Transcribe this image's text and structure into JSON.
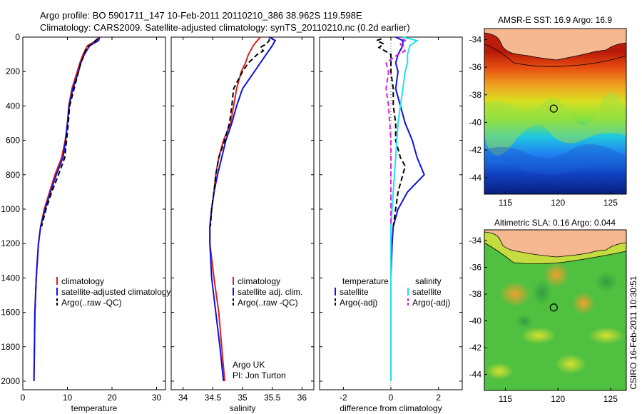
{
  "header": {
    "line1": "Argo profile: BO 5901711_147 10-Feb-2011 20110210_386 38.962S 119.598E",
    "line2": "Climatology: CARS2009. Satellite-adjusted climatology: synTS_20110210.nc (0.2d earlier)"
  },
  "side_text": "CSIRO 16-Feb-2011 10:30:51",
  "colors": {
    "red": "#dd2020",
    "blue": "#1010dd",
    "black": "#000000",
    "cyan": "#20e0f0",
    "magenta": "#e020e0",
    "land": "#f5b890"
  },
  "chart_data": [
    {
      "type": "line",
      "xlabel": "temperature",
      "xlim": [
        0,
        32
      ],
      "ylim": [
        2050,
        0
      ],
      "xticks": [
        "0",
        "10",
        "20",
        "30"
      ],
      "yticks": [
        "0",
        "200",
        "400",
        "600",
        "800",
        "1000",
        "1200",
        "1400",
        "1600",
        "1800",
        "2000"
      ],
      "legend": [
        "climatology",
        "satellite-adjusted climatology",
        "Argo(..raw -QC)"
      ],
      "series": [
        {
          "name": "climatology",
          "color": "#dd2020",
          "dash": false,
          "depth": [
            0,
            20,
            50,
            100,
            150,
            200,
            300,
            400,
            500,
            600,
            700,
            800,
            900,
            1000,
            1100,
            1200,
            1400,
            1600,
            1800,
            2000
          ],
          "values": [
            17.0,
            16.5,
            14.5,
            13.5,
            12.8,
            12.2,
            11.0,
            10.3,
            10.0,
            9.5,
            8.7,
            7.2,
            6.0,
            4.8,
            4.0,
            3.5,
            3.0,
            2.7,
            2.6,
            2.5
          ]
        },
        {
          "name": "satellite-adjusted climatology",
          "color": "#1010dd",
          "dash": false,
          "depth": [
            0,
            20,
            50,
            100,
            150,
            200,
            300,
            400,
            500,
            600,
            700,
            800,
            900,
            1000,
            1100,
            1200,
            1400,
            1600,
            1800,
            2000
          ],
          "values": [
            17.2,
            17.0,
            15.0,
            13.8,
            13.0,
            12.5,
            11.2,
            10.4,
            10.0,
            9.6,
            9.0,
            7.5,
            6.2,
            5.0,
            4.0,
            3.5,
            3.0,
            2.7,
            2.6,
            2.5
          ]
        },
        {
          "name": "Argo(..raw -QC)",
          "color": "#000000",
          "dash": true,
          "depth": [
            10,
            20,
            40,
            60,
            100,
            150,
            200,
            300,
            400,
            500,
            600,
            700,
            800,
            900,
            1000,
            1100
          ],
          "values": [
            16.8,
            16.3,
            15.5,
            14.3,
            13.8,
            13.0,
            12.5,
            11.5,
            10.5,
            10.2,
            9.8,
            9.4,
            8.0,
            6.5,
            5.2,
            4.2
          ]
        }
      ]
    },
    {
      "type": "line",
      "xlabel": "salinity",
      "xlim": [
        33.8,
        36.2
      ],
      "ylim": [
        2050,
        0
      ],
      "xticks": [
        "34",
        "34.5",
        "35",
        "35.5",
        "36"
      ],
      "legend": [
        "climatology",
        "satellite adj. clim.",
        "Argo(..raw -QC)"
      ],
      "annotation": [
        "Argo UK",
        "PI: Jon Turton"
      ],
      "series": [
        {
          "name": "climatology",
          "color": "#dd2020",
          "dash": false,
          "depth": [
            0,
            20,
            50,
            100,
            150,
            200,
            300,
            400,
            500,
            600,
            700,
            800,
            900,
            1000,
            1100,
            1200,
            1400,
            1600,
            1800,
            2000
          ],
          "values": [
            35.3,
            35.25,
            35.18,
            35.1,
            35.05,
            34.98,
            34.9,
            34.85,
            34.8,
            34.68,
            34.6,
            34.55,
            34.52,
            34.48,
            34.45,
            34.45,
            34.52,
            34.6,
            34.65,
            34.7
          ]
        },
        {
          "name": "satellite adj. clim.",
          "color": "#1010dd",
          "dash": false,
          "depth": [
            0,
            20,
            50,
            100,
            150,
            200,
            300,
            400,
            500,
            600,
            700,
            800,
            900,
            1000,
            1100,
            1200,
            1400,
            1600,
            1800,
            2000
          ],
          "values": [
            35.45,
            35.55,
            35.5,
            35.4,
            35.3,
            35.2,
            35.0,
            34.9,
            34.82,
            34.72,
            34.65,
            34.58,
            34.52,
            34.48,
            34.45,
            34.45,
            34.48,
            34.55,
            34.62,
            34.68
          ]
        },
        {
          "name": "Argo(..raw -QC)",
          "color": "#000000",
          "dash": true,
          "depth": [
            10,
            20,
            40,
            60,
            80,
            100,
            150,
            200,
            300,
            400,
            500,
            600,
            700,
            800,
            900,
            1000,
            1100
          ],
          "values": [
            35.45,
            35.45,
            35.4,
            35.3,
            35.35,
            35.25,
            35.1,
            35.0,
            34.85,
            34.82,
            34.78,
            34.7,
            34.6,
            34.55,
            34.52,
            34.48,
            34.46
          ]
        }
      ]
    },
    {
      "type": "line",
      "xlabel": "difference from climatology",
      "xlim": [
        -3,
        3
      ],
      "ylim": [
        2050,
        0
      ],
      "xticks": [
        "-2",
        "0",
        "2"
      ],
      "legend": [
        "temperature",
        "satellite",
        "Argo(-adj)",
        "salinity",
        "satellite",
        "Argo(-adj)"
      ],
      "series": [
        {
          "name": "temperature satellite",
          "color": "#1010dd",
          "dash": false,
          "depth": [
            0,
            20,
            50,
            100,
            150,
            200,
            300,
            400,
            500,
            600,
            700,
            800,
            900,
            1000,
            1100,
            1200,
            1400,
            1600,
            1800,
            2000
          ],
          "values": [
            0.2,
            0.5,
            0.5,
            0.3,
            0.2,
            0.3,
            0.2,
            0.4,
            0.6,
            0.9,
            1.1,
            1.4,
            0.7,
            0.3,
            0.1,
            0.05,
            0.0,
            0.0,
            0.0,
            0.0
          ]
        },
        {
          "name": "temperature Argo(-adj)",
          "color": "#000000",
          "dash": true,
          "depth": [
            10,
            20,
            40,
            60,
            100,
            150,
            200,
            300,
            400,
            500,
            600,
            700,
            750,
            800,
            900,
            1000,
            1100
          ],
          "values": [
            -0.4,
            -0.6,
            -0.3,
            -0.5,
            0.0,
            0.0,
            0.0,
            0.1,
            0.1,
            0.2,
            0.2,
            0.4,
            0.6,
            0.5,
            0.3,
            0.2,
            0.1
          ]
        },
        {
          "name": "salinity satellite",
          "color": "#20e0f0",
          "dash": false,
          "depth": [
            0,
            20,
            50,
            100,
            150,
            200,
            300,
            400,
            500,
            600,
            700,
            800,
            900,
            1000,
            1100,
            1200,
            1400,
            1600,
            1800,
            2000
          ],
          "values": [
            0.5,
            1.1,
            0.8,
            0.7,
            0.7,
            0.6,
            0.5,
            0.4,
            0.3,
            0.25,
            0.2,
            0.15,
            0.1,
            0.05,
            0.0,
            0.0,
            0.0,
            0.0,
            0.0,
            0.0
          ]
        },
        {
          "name": "salinity Argo(-adj)",
          "color": "#e020e0",
          "dash": true,
          "depth": [
            10,
            20,
            40,
            60,
            80,
            100,
            150,
            200,
            300,
            400,
            500,
            600,
            700,
            800,
            900,
            1000,
            1100
          ],
          "values": [
            0.5,
            0.6,
            0.4,
            0.5,
            0.6,
            0.3,
            -0.2,
            -0.1,
            -0.2,
            -0.1,
            -0.05,
            0.0,
            0.0,
            0.0,
            0.0,
            0.0,
            0.0
          ]
        }
      ]
    },
    {
      "type": "heatmap",
      "title": "AMSR-E SST: 16.9 Argo: 16.9",
      "xticks": [
        "115",
        "120",
        "125"
      ],
      "yticks": [
        "-34",
        "-36",
        "-38",
        "-40",
        "-42",
        "-44"
      ],
      "xlim": [
        113,
        126.5
      ],
      "ylim": [
        -45.2,
        -33.2
      ],
      "marker": {
        "lon": 119.6,
        "lat": -39.0
      }
    },
    {
      "type": "heatmap",
      "title": "Altimetric SLA: 0.16 Argo: 0.044",
      "xticks": [
        "115",
        "120",
        "125"
      ],
      "yticks": [
        "-34",
        "-36",
        "-38",
        "-40",
        "-42",
        "-44"
      ],
      "xlim": [
        113,
        126.5
      ],
      "ylim": [
        -45.2,
        -33.2
      ],
      "marker": {
        "lon": 119.6,
        "lat": -39.0
      }
    }
  ]
}
